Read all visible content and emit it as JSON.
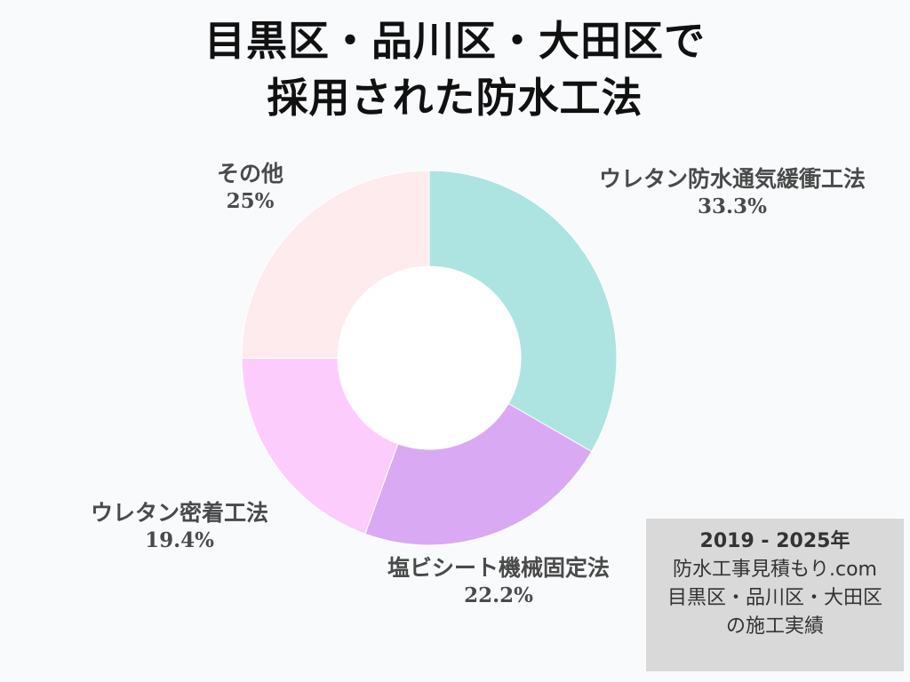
{
  "chart_data": {
    "type": "pie",
    "variant": "donut",
    "title": [
      "目黒区・品川区・大田区で",
      "採用された防水工法"
    ],
    "series": [
      {
        "name": "ウレタン防水通気緩衝工法",
        "label": "33.3%",
        "value": 33.3,
        "color": "#ade4e1"
      },
      {
        "name": "塩ビシート機械固定法",
        "label": "22.2%",
        "value": 22.2,
        "color": "#d9aaf3"
      },
      {
        "name": "ウレタン密着工法",
        "label": "19.4%",
        "value": 19.4,
        "color": "#fccdfc"
      },
      {
        "name": "その他",
        "label": "25%",
        "value": 25.0,
        "color": "#fdebed"
      }
    ]
  },
  "note": {
    "lines": [
      "2019 - 2025年",
      "防水工事見積もり.com",
      "目黒区・品川区・大田区",
      "の施工実績"
    ]
  }
}
